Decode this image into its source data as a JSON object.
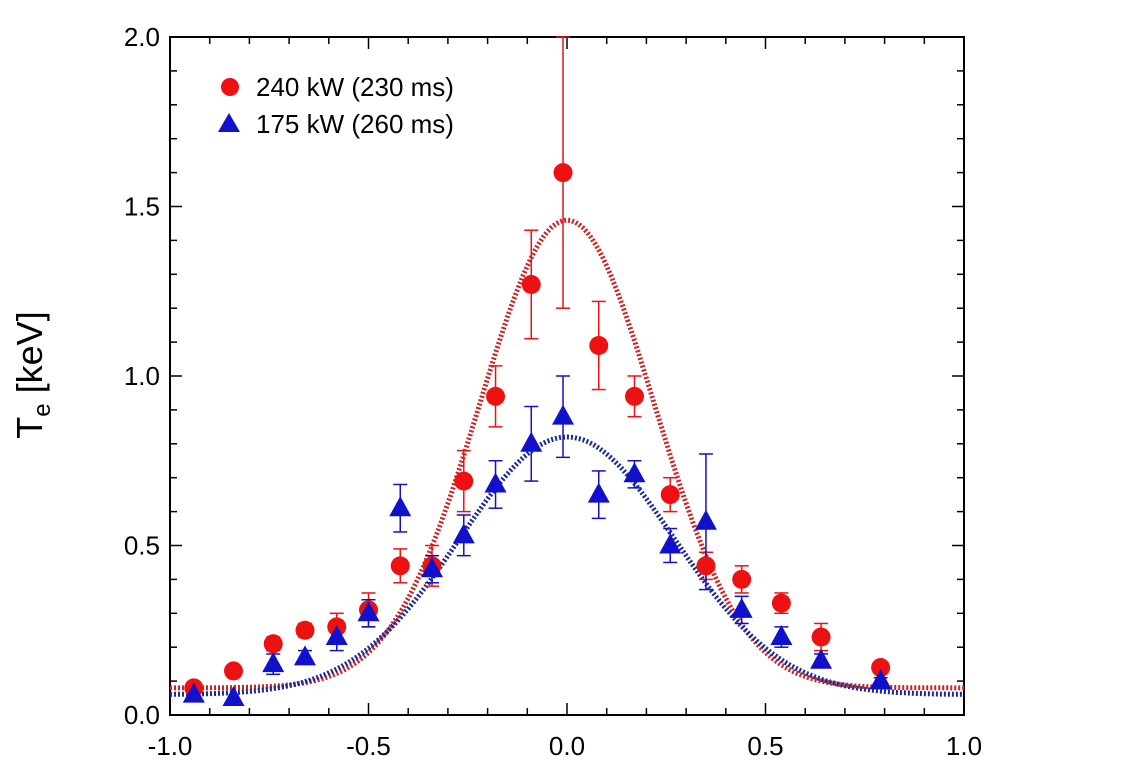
{
  "chart_data": {
    "type": "scatter",
    "title": "",
    "xlabel": "",
    "ylabel": "T",
    "ylabel_subscript": "e",
    "ylabel_unit": " [keV]",
    "xlim": [
      -1.0,
      1.0
    ],
    "ylim": [
      0.0,
      2.0
    ],
    "x_ticks": [
      "-1.0",
      "-0.5",
      "0.0",
      "0.5",
      "1.0"
    ],
    "x_tick_values": [
      -1.0,
      -0.5,
      0.0,
      0.5,
      1.0
    ],
    "y_ticks": [
      "0.0",
      "0.5",
      "1.0",
      "1.5",
      "2.0"
    ],
    "y_tick_values": [
      0.0,
      0.5,
      1.0,
      1.5,
      2.0
    ],
    "grid": false,
    "legend_position": "top-left",
    "series": [
      {
        "name": "240 kW (230 ms)",
        "marker": "circle",
        "color": "#ee1111",
        "fit_color": "#cc2222",
        "points": [
          {
            "x": -0.94,
            "y": 0.08,
            "err": 0.01
          },
          {
            "x": -0.84,
            "y": 0.13,
            "err": 0.01
          },
          {
            "x": -0.74,
            "y": 0.21,
            "err": 0.02
          },
          {
            "x": -0.66,
            "y": 0.25,
            "err": 0.02
          },
          {
            "x": -0.58,
            "y": 0.26,
            "err": 0.04
          },
          {
            "x": -0.5,
            "y": 0.31,
            "err": 0.05
          },
          {
            "x": -0.42,
            "y": 0.44,
            "err": 0.05
          },
          {
            "x": -0.34,
            "y": 0.44,
            "err": 0.06
          },
          {
            "x": -0.26,
            "y": 0.69,
            "err": 0.09
          },
          {
            "x": -0.18,
            "y": 0.94,
            "err": 0.09
          },
          {
            "x": -0.09,
            "y": 1.27,
            "err": 0.16
          },
          {
            "x": -0.01,
            "y": 1.6,
            "err": 0.4
          },
          {
            "x": 0.08,
            "y": 1.09,
            "err": 0.13
          },
          {
            "x": 0.17,
            "y": 0.94,
            "err": 0.06
          },
          {
            "x": 0.26,
            "y": 0.65,
            "err": 0.05
          },
          {
            "x": 0.35,
            "y": 0.44,
            "err": 0.04
          },
          {
            "x": 0.44,
            "y": 0.4,
            "err": 0.04
          },
          {
            "x": 0.54,
            "y": 0.33,
            "err": 0.03
          },
          {
            "x": 0.64,
            "y": 0.23,
            "err": 0.04
          },
          {
            "x": 0.79,
            "y": 0.14,
            "err": 0.01
          }
        ],
        "fit": {
          "peak": 1.46,
          "width": 0.22,
          "baseline": 0.08
        }
      },
      {
        "name": "175 kW (260 ms)",
        "marker": "triangle",
        "color": "#1111cc",
        "fit_color": "#1a2a99",
        "points": [
          {
            "x": -0.94,
            "y": 0.06,
            "err": 0.02
          },
          {
            "x": -0.84,
            "y": 0.05,
            "err": 0.0
          },
          {
            "x": -0.74,
            "y": 0.15,
            "err": 0.03
          },
          {
            "x": -0.66,
            "y": 0.17,
            "err": 0.02
          },
          {
            "x": -0.58,
            "y": 0.23,
            "err": 0.04
          },
          {
            "x": -0.5,
            "y": 0.3,
            "err": 0.04
          },
          {
            "x": -0.42,
            "y": 0.61,
            "err": 0.07
          },
          {
            "x": -0.34,
            "y": 0.43,
            "err": 0.04
          },
          {
            "x": -0.26,
            "y": 0.53,
            "err": 0.06
          },
          {
            "x": -0.18,
            "y": 0.68,
            "err": 0.07
          },
          {
            "x": -0.09,
            "y": 0.8,
            "err": 0.11
          },
          {
            "x": -0.01,
            "y": 0.88,
            "err": 0.12
          },
          {
            "x": 0.08,
            "y": 0.65,
            "err": 0.07
          },
          {
            "x": 0.17,
            "y": 0.71,
            "err": 0.04
          },
          {
            "x": 0.26,
            "y": 0.5,
            "err": 0.05
          },
          {
            "x": 0.35,
            "y": 0.57,
            "err": 0.2
          },
          {
            "x": 0.44,
            "y": 0.31,
            "err": 0.04
          },
          {
            "x": 0.54,
            "y": 0.23,
            "err": 0.03
          },
          {
            "x": 0.64,
            "y": 0.16,
            "err": 0.02
          },
          {
            "x": 0.79,
            "y": 0.1,
            "err": 0.01
          }
        ],
        "fit": {
          "peak": 0.82,
          "width": 0.27,
          "baseline": 0.06
        }
      }
    ]
  }
}
